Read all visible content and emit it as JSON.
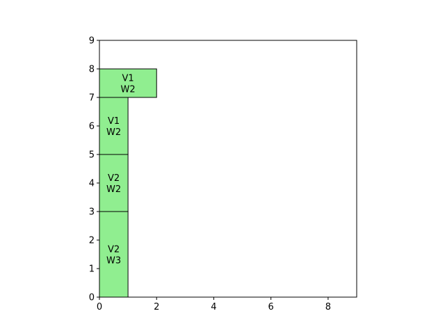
{
  "chart_data": {
    "type": "rectangles",
    "xlim": [
      0,
      9
    ],
    "ylim": [
      0,
      9
    ],
    "x_ticks": [
      0,
      2,
      4,
      6,
      8
    ],
    "y_ticks": [
      0,
      1,
      2,
      3,
      4,
      5,
      6,
      7,
      8,
      9
    ],
    "grid": false,
    "fill_color": "#90ee90",
    "edge_color": "#000000",
    "rectangles": [
      {
        "x": 0,
        "y": 0,
        "width": 1,
        "height": 3,
        "label_line1": "V2",
        "label_line2": "W3"
      },
      {
        "x": 0,
        "y": 3,
        "width": 1,
        "height": 2,
        "label_line1": "V2",
        "label_line2": "W2"
      },
      {
        "x": 0,
        "y": 5,
        "width": 1,
        "height": 2,
        "label_line1": "V1",
        "label_line2": "W2"
      },
      {
        "x": 0,
        "y": 7,
        "width": 2,
        "height": 1,
        "label_line1": "V1",
        "label_line2": "W2"
      }
    ]
  }
}
